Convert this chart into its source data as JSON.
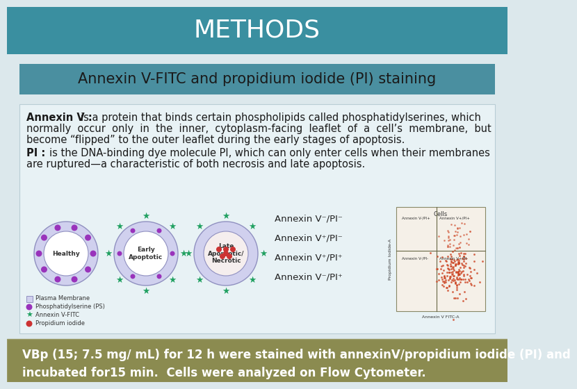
{
  "title": "METHODS",
  "title_bg": "#3a8fa0",
  "title_color": "#ffffff",
  "title_fontsize": 26,
  "subtitle": "Annexin V-FITC and propidium iodide (PI) staining",
  "subtitle_bg": "#4a8fa0",
  "subtitle_color": "#1a1a1a",
  "subtitle_fontsize": 15,
  "footer_text": "VBp (15; 7.5 mg/ mL) for 12 h were stained with annexinV/propidium iodide (PI) and\nincubated for15 min.  Cells were analyzed on Flow Cytometer.",
  "footer_bg": "#8b8b50",
  "footer_color": "#ffffff",
  "footer_fontsize": 12,
  "slide_bg": "#dce8ec",
  "body_bg": "#e8f2f5",
  "text_color": "#1a1a1a",
  "body_fontsize": 10.5,
  "lines1": [
    [
      "Annexin V : ",
      "is a protein that binds certain phospholipids called phosphatidylserines, which"
    ],
    [
      "",
      "normally  occur  only  in  the  inner,  cytoplasm-facing  leaflet  of  a  cell’s  membrane,  but"
    ],
    [
      "",
      "become “flipped” to the outer leaflet during the early stages of apoptosis."
    ]
  ],
  "lines2": [
    [
      "PI : ",
      "is the DNA-binding dye molecule PI, which can only enter cells when their membranes"
    ],
    [
      "",
      "are ruptured—a characteristic of both necrosis and late apoptosis."
    ]
  ],
  "annex_labels": [
    "Annexin V⁻/PI⁻",
    "Annexin V⁺/PI⁻",
    "Annexin V⁺/PI⁺",
    "Annexin V⁻/PI⁺"
  ],
  "legend_items": [
    [
      "#d0d0ee",
      "Plasma Membrane"
    ],
    [
      "#9933bb",
      "Phosphatidylserine (PS)"
    ],
    [
      "#20a060",
      "Annexin V-FITC"
    ],
    [
      "#cc3333",
      "Propidium iodide"
    ]
  ]
}
